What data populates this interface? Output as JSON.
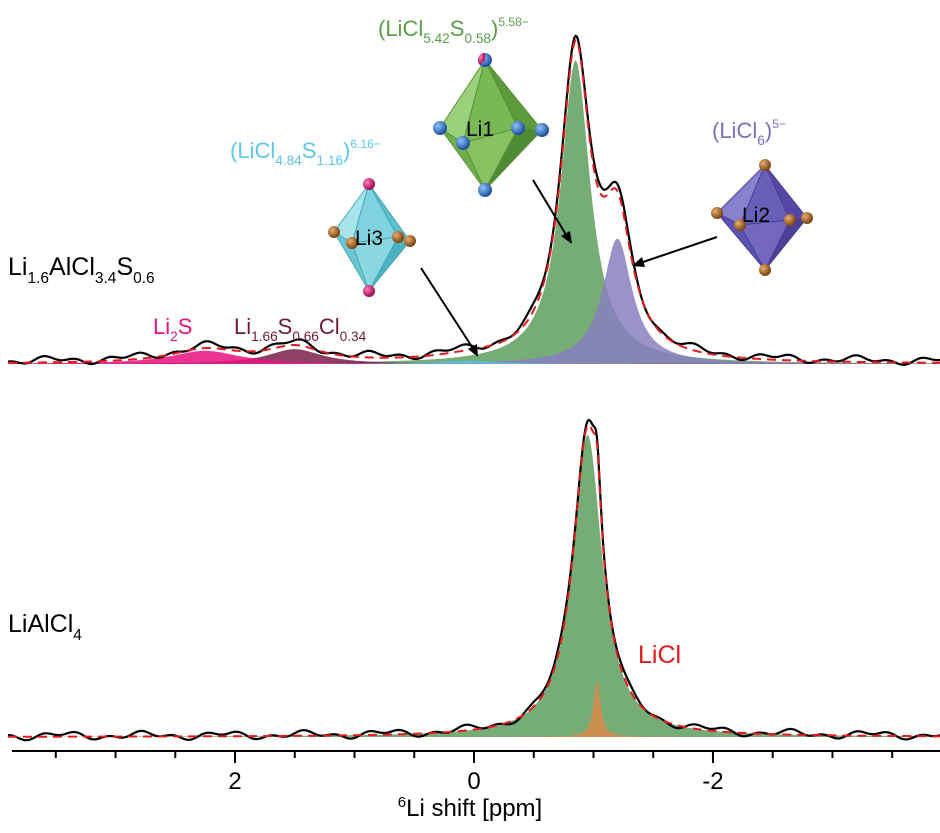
{
  "chart_data": {
    "type": "area",
    "xlabel_sup": "6",
    "xlabel_main": "Li shift [ppm]",
    "xlim": [
      3.9,
      -3.9
    ],
    "x_axis_reversed": true,
    "ticks": [
      {
        "v": 2,
        "label": "2"
      },
      {
        "v": 0,
        "label": "0"
      },
      {
        "v": -2,
        "label": "-2"
      }
    ],
    "minor_ticks": [
      3.5,
      3,
      2.5,
      1.5,
      1,
      0.5,
      -0.5,
      -1,
      -1.5,
      -2.5,
      -3,
      -3.5
    ],
    "panels": [
      {
        "id": "top",
        "sample": {
          "parts": [
            [
              "Li",
              ""
            ],
            [
              "1.6",
              "sub"
            ],
            [
              "AlCl",
              ""
            ],
            [
              "3.4",
              "sub"
            ],
            [
              "S",
              ""
            ],
            [
              "0.6",
              "sub"
            ]
          ]
        },
        "experimental_color": "#000000",
        "fit_color": "#e31a1c",
        "components": [
          {
            "name": "Li2S",
            "center": 2.25,
            "fwhm": 0.7,
            "height": 0.04,
            "color": "#e8117f"
          },
          {
            "name": "Li1.66S0.66Cl0.34",
            "center": 1.5,
            "fwhm": 0.55,
            "height": 0.045,
            "color": "#7a1f4a"
          },
          {
            "name": "Li3",
            "center": 0.05,
            "fwhm": 0.6,
            "height": 0.01,
            "color": "#5bc0de"
          },
          {
            "name": "Li1",
            "center": -0.85,
            "fwhm": 0.3,
            "height": 0.92,
            "color": "#5e9e5e"
          },
          {
            "name": "Li2",
            "center": -1.2,
            "fwhm": 0.3,
            "height": 0.38,
            "color": "#8a7fc0"
          }
        ],
        "labels": [
          {
            "parts": [
              [
                "Li",
                ""
              ],
              [
                "2",
                "sub"
              ],
              [
                "S",
                ""
              ]
            ],
            "color": "#e8117f"
          },
          {
            "parts": [
              [
                "Li",
                ""
              ],
              [
                "1.66",
                "sub"
              ],
              [
                "S",
                ""
              ],
              [
                "0.66",
                "sub"
              ],
              [
                "Cl",
                ""
              ],
              [
                "0.34",
                "sub"
              ]
            ],
            "color": "#6b1a3e"
          },
          {
            "parts": [
              [
                "(LiCl",
                ""
              ],
              [
                "4.84",
                "sub"
              ],
              [
                "S",
                ""
              ],
              [
                "1.16",
                "sub"
              ],
              [
                ")",
                ""
              ],
              [
                "6.16−",
                "sup"
              ]
            ],
            "color": "#5bc8e6"
          },
          {
            "parts": [
              [
                "(LiCl",
                ""
              ],
              [
                "5.42",
                "sub"
              ],
              [
                "S",
                ""
              ],
              [
                "0.58",
                "sub"
              ],
              [
                ")",
                ""
              ],
              [
                "5.58−",
                "sup"
              ]
            ],
            "color": "#5a9e4a"
          },
          {
            "parts": [
              [
                "(LiCl",
                ""
              ],
              [
                "6",
                "sub"
              ],
              [
                ")",
                ""
              ],
              [
                "5−",
                "sup"
              ]
            ],
            "color": "#7a70c0"
          }
        ],
        "sites": [
          "Li1",
          "Li2",
          "Li3"
        ]
      },
      {
        "id": "bottom",
        "sample": {
          "parts": [
            [
              "LiAlCl",
              ""
            ],
            [
              "4",
              "sub"
            ]
          ]
        },
        "experimental_color": "#000000",
        "fit_color": "#e31a1c",
        "components": [
          {
            "name": "LiAlCl4",
            "center": -0.95,
            "fwhm": 0.3,
            "height": 0.91,
            "color": "#5e9e5e"
          },
          {
            "name": "LiCl",
            "center": -1.03,
            "fwhm": 0.07,
            "height": 0.17,
            "color": "#d98a4a"
          }
        ],
        "labels": [
          {
            "parts": [
              [
                "LiCl",
                ""
              ]
            ],
            "color": "#e31a1c"
          }
        ]
      }
    ]
  },
  "colors": {
    "li1_face": "#7dbf5a",
    "li2_face": "#6a5fb8",
    "li3_face": "#7fd3de",
    "cl_atom": "#9a5a1a",
    "cl_atom_blue": "#2f6fc0",
    "s_atom": "#d0106a"
  }
}
